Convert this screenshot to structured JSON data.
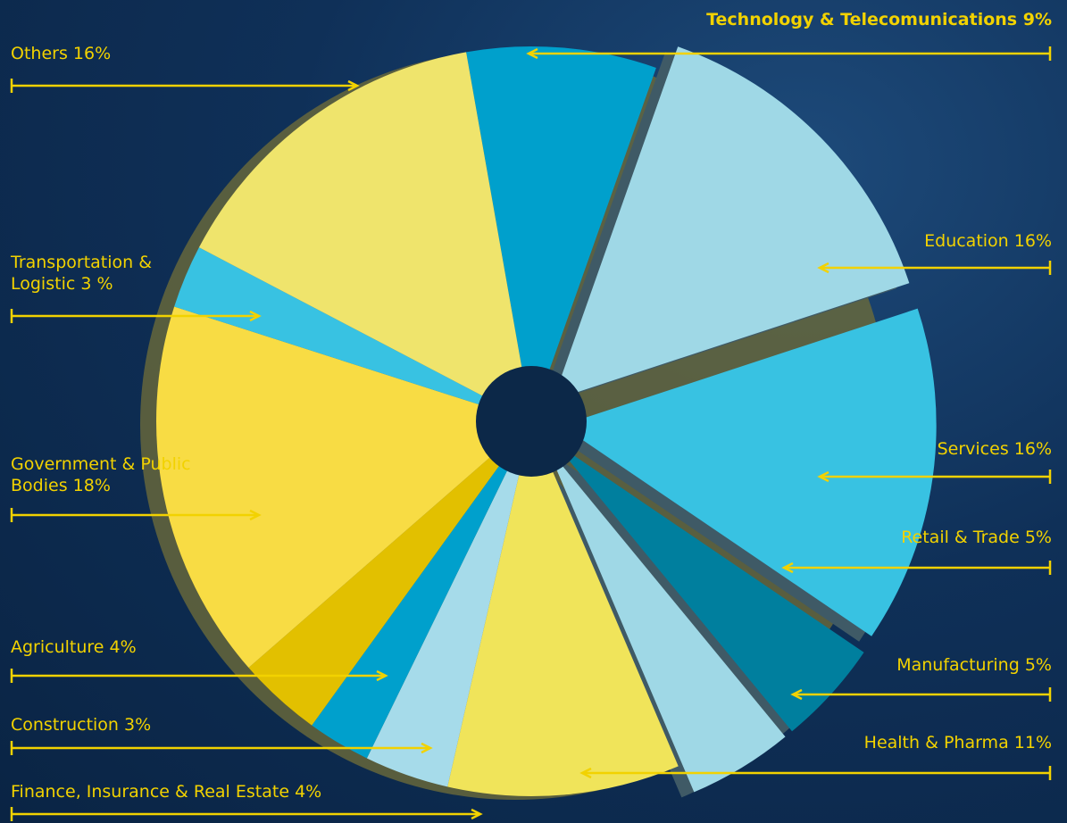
{
  "chart_data": {
    "type": "pie",
    "categories": [
      "Technology & Telecomunications",
      "Education",
      "Services",
      "Retail & Trade",
      "Manufacturing",
      "Health & Pharma",
      "Finance, Insurance & Real Estate",
      "Construction",
      "Agriculture",
      "Government & Public Bodies",
      "Transportation & Logistic",
      "Others"
    ],
    "values": [
      9,
      16,
      16,
      5,
      5,
      11,
      4,
      3,
      4,
      18,
      3,
      16
    ],
    "value_labels": [
      "9%",
      "16%",
      "16%",
      "5%",
      "5%",
      "11%",
      "4%",
      "3%",
      "4%",
      "18%",
      "3 %",
      "16%"
    ],
    "colors": [
      "#00a0cc",
      "#9fd8e6",
      "#38c2e2",
      "#007f9e",
      "#9fd8e6",
      "#f0e45a",
      "#a6dbea",
      "#00a0cc",
      "#e2c000",
      "#f8dc44",
      "#38c2e2",
      "#efe46c"
    ],
    "exploded": [
      false,
      true,
      true,
      true,
      true,
      false,
      false,
      false,
      false,
      false,
      false,
      false
    ]
  }
}
